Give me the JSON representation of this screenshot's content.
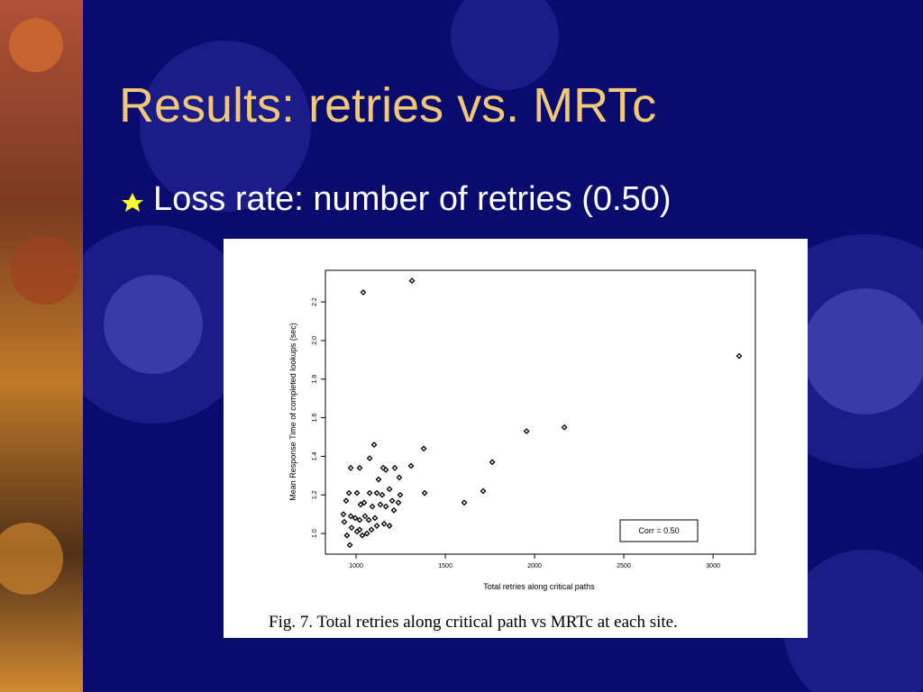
{
  "slide": {
    "title": "Results: retries vs. MRTc",
    "bullet": "Loss rate: number of retries (0.50)"
  },
  "chart_data": {
    "type": "scatter",
    "x_label": "Total retries along critical paths",
    "y_label": "Mean Response Time of completed lookups (sec)",
    "annotation": "Corr = 0.50",
    "caption": "Fig. 7.  Total retries along critical path vs MRTc at each site.",
    "color": "#000000",
    "xlim": [
      828,
      3237
    ],
    "ylim": [
      0.893,
      2.364
    ],
    "xticks": [
      1000,
      1500,
      2000,
      2500,
      3000
    ],
    "yticks": [
      {
        "value": 1.0,
        "label": "1.0"
      },
      1.2,
      1.4,
      1.6,
      1.8,
      {
        "value": 2.0,
        "label": "2.0"
      },
      2.2
    ],
    "x": [
      1040,
      1313,
      3146,
      2167,
      1955,
      1763,
      1712,
      1606,
      1379,
      1384,
      1308,
      970,
      1020,
      1101,
      1076,
      1152,
      1167,
      1217,
      1242,
      1126,
      1187,
      1247,
      960,
      1005,
      1076,
      1116,
      1146,
      1045,
      1025,
      1091,
      1136,
      1167,
      1212,
      929,
      970,
      995,
      1020,
      1050,
      1071,
      1106,
      1157,
      1187,
      934,
      975,
      1005,
      1035,
      1061,
      949,
      965,
      1020,
      1086,
      1116,
      1202,
      1237,
      944
    ],
    "values": [
      2.25,
      2.31,
      1.92,
      1.55,
      1.53,
      1.37,
      1.22,
      1.16,
      1.44,
      1.21,
      1.35,
      1.34,
      1.34,
      1.46,
      1.39,
      1.34,
      1.33,
      1.34,
      1.29,
      1.28,
      1.23,
      1.2,
      1.21,
      1.21,
      1.21,
      1.21,
      1.2,
      1.16,
      1.15,
      1.14,
      1.15,
      1.14,
      1.12,
      1.1,
      1.09,
      1.08,
      1.07,
      1.09,
      1.07,
      1.08,
      1.05,
      1.04,
      1.06,
      1.03,
      1.01,
      0.99,
      1.0,
      0.99,
      0.94,
      1.02,
      1.02,
      1.04,
      1.17,
      1.16,
      1.17
    ]
  }
}
